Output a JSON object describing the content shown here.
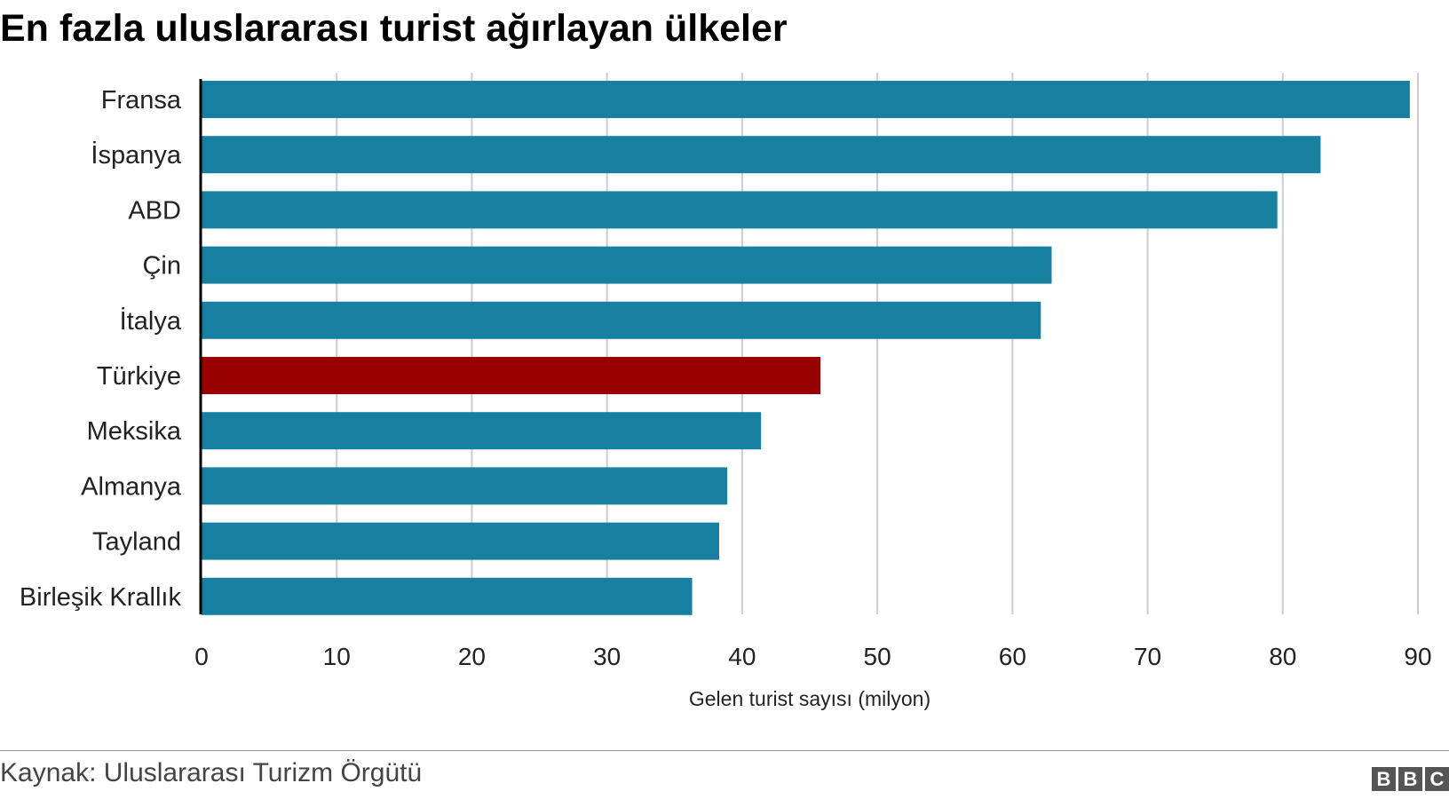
{
  "title": "En fazla uluslararası turist ağırlayan ülkeler",
  "source": "Kaynak: Uluslararası Turizm Örgütü",
  "logo": {
    "letters": [
      "B",
      "B",
      "C"
    ]
  },
  "colors": {
    "bar": "#1780a1",
    "highlight": "#990000",
    "grid": "#cccccc",
    "axis": "#000000"
  },
  "chart_data": {
    "type": "bar",
    "orientation": "horizontal",
    "title": "En fazla uluslararası turist ağırlayan ülkeler",
    "xlabel": "Gelen turist sayısı (milyon)",
    "ylabel": "",
    "categories": [
      "Fransa",
      "İspanya",
      "ABD",
      "Çin",
      "İtalya",
      "Türkiye",
      "Meksika",
      "Almanya",
      "Tayland",
      "Birleşik Krallık"
    ],
    "values": [
      89.4,
      82.8,
      79.6,
      62.9,
      62.1,
      45.8,
      41.4,
      38.9,
      38.3,
      36.3
    ],
    "highlight": "Türkiye",
    "xlim": [
      0,
      90
    ],
    "xticks": [
      0,
      10,
      20,
      30,
      40,
      50,
      60,
      70,
      80,
      90
    ],
    "grid": true,
    "legend": "none"
  }
}
